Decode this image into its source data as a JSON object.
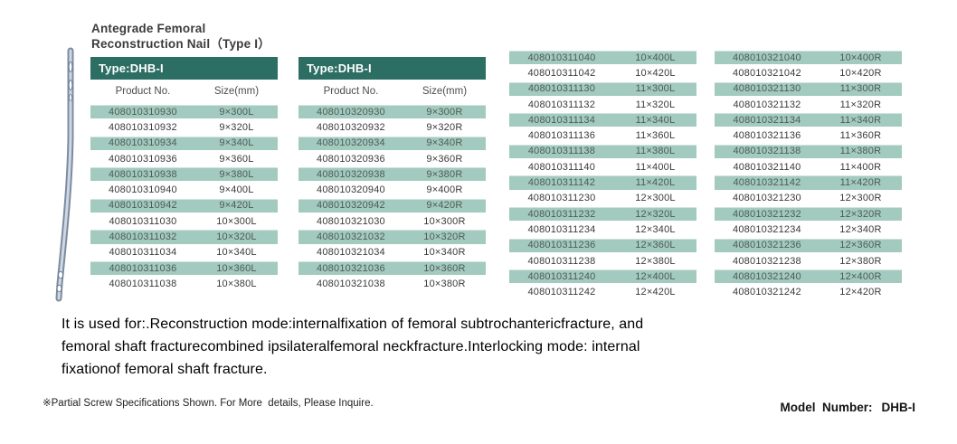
{
  "page": {
    "title_line1": "Antegrade Femoral",
    "title_line2": "Reconstruction Nail（Type I）"
  },
  "colors": {
    "header_bg": "#2d6e64",
    "row_shade": "#a3cabf"
  },
  "tables": [
    {
      "type_label": "Type:DHB-I",
      "col_product": "Product No.",
      "col_size": "Size(mm)",
      "rows": [
        [
          "408010310930",
          "9×300L"
        ],
        [
          "408010310932",
          "9×320L"
        ],
        [
          "408010310934",
          "9×340L"
        ],
        [
          "408010310936",
          "9×360L"
        ],
        [
          "408010310938",
          "9×380L"
        ],
        [
          "408010310940",
          "9×400L"
        ],
        [
          "408010310942",
          "9×420L"
        ],
        [
          "408010311030",
          "10×300L"
        ],
        [
          "408010311032",
          "10×320L"
        ],
        [
          "408010311034",
          "10×340L"
        ],
        [
          "408010311036",
          "10×360L"
        ],
        [
          "408010311038",
          "10×380L"
        ]
      ]
    },
    {
      "type_label": "Type:DHB-I",
      "col_product": "Product No.",
      "col_size": "Size(mm)",
      "rows": [
        [
          "408010320930",
          "9×300R"
        ],
        [
          "408010320932",
          "9×320R"
        ],
        [
          "408010320934",
          "9×340R"
        ],
        [
          "408010320936",
          "9×360R"
        ],
        [
          "408010320938",
          "9×380R"
        ],
        [
          "408010320940",
          "9×400R"
        ],
        [
          "408010320942",
          "9×420R"
        ],
        [
          "408010321030",
          "10×300R"
        ],
        [
          "408010321032",
          "10×320R"
        ],
        [
          "408010321034",
          "10×340R"
        ],
        [
          "408010321036",
          "10×360R"
        ],
        [
          "408010321038",
          "10×380R"
        ]
      ]
    },
    {
      "rows": [
        [
          "408010311040",
          "10×400L"
        ],
        [
          "408010311042",
          "10×420L"
        ],
        [
          "408010311130",
          "11×300L"
        ],
        [
          "408010311132",
          "11×320L"
        ],
        [
          "408010311134",
          "11×340L"
        ],
        [
          "408010311136",
          "11×360L"
        ],
        [
          "408010311138",
          "11×380L"
        ],
        [
          "408010311140",
          "11×400L"
        ],
        [
          "408010311142",
          "11×420L"
        ],
        [
          "408010311230",
          "12×300L"
        ],
        [
          "408010311232",
          "12×320L"
        ],
        [
          "408010311234",
          "12×340L"
        ],
        [
          "408010311236",
          "12×360L"
        ],
        [
          "408010311238",
          "12×380L"
        ],
        [
          "408010311240",
          "12×400L"
        ],
        [
          "408010311242",
          "12×420L"
        ]
      ]
    },
    {
      "rows": [
        [
          "408010321040",
          "10×400R"
        ],
        [
          "408010321042",
          "10×420R"
        ],
        [
          "408010321130",
          "11×300R"
        ],
        [
          "408010321132",
          "11×320R"
        ],
        [
          "408010321134",
          "11×340R"
        ],
        [
          "408010321136",
          "11×360R"
        ],
        [
          "408010321138",
          "11×380R"
        ],
        [
          "408010321140",
          "11×400R"
        ],
        [
          "408010321142",
          "11×420R"
        ],
        [
          "408010321230",
          "12×300R"
        ],
        [
          "408010321232",
          "12×320R"
        ],
        [
          "408010321234",
          "12×340R"
        ],
        [
          "408010321236",
          "12×360R"
        ],
        [
          "408010321238",
          "12×380R"
        ],
        [
          "408010321240",
          "12×400R"
        ],
        [
          "408010321242",
          "12×420R"
        ]
      ]
    }
  ],
  "description": {
    "line1": "It is used for:.Reconstruction mode:internalfixation of femoral subtrochantericfracture, and",
    "line2": "femoral shaft fracturecombined ipsilateralfemoral neckfracture.Interlocking mode: internal",
    "line3": "fixationof femoral shaft fracture."
  },
  "footnote": "※Partial Screw Specifications Shown. For More  details, Please Inquire.",
  "model": {
    "label": "Model  Number:",
    "value": "DHB-I"
  }
}
